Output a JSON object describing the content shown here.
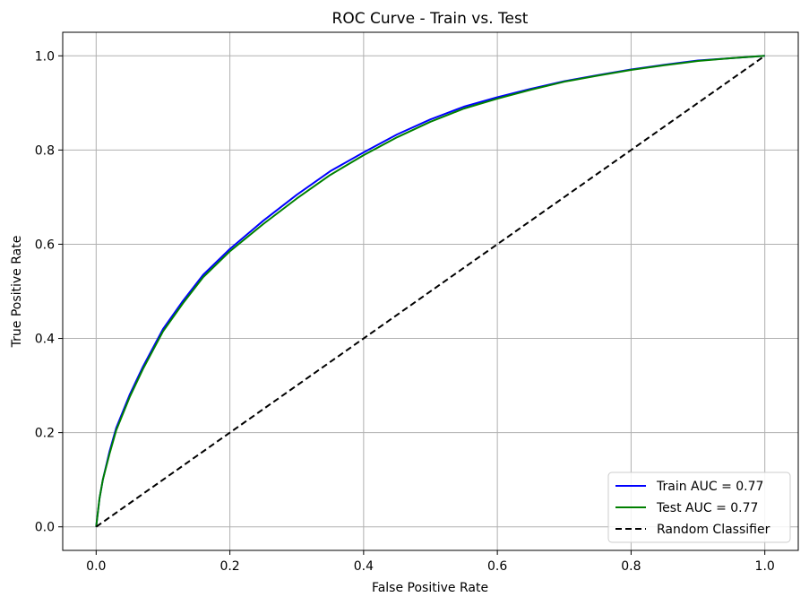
{
  "chart_data": {
    "type": "line",
    "title": "ROC Curve - Train vs. Test",
    "xlabel": "False Positive Rate",
    "ylabel": "True Positive Rate",
    "xlim": [
      -0.05,
      1.05
    ],
    "ylim": [
      -0.05,
      1.05
    ],
    "xticks": [
      0.0,
      0.2,
      0.4,
      0.6,
      0.8,
      1.0
    ],
    "yticks": [
      0.0,
      0.2,
      0.4,
      0.6,
      0.8,
      1.0
    ],
    "xtick_labels": [
      "0.0",
      "0.2",
      "0.4",
      "0.6",
      "0.8",
      "1.0"
    ],
    "ytick_labels": [
      "0.0",
      "0.2",
      "0.4",
      "0.6",
      "0.8",
      "1.0"
    ],
    "grid": true,
    "legend_position": "bottom-right",
    "series": [
      {
        "name": "Train AUC = 0.77",
        "color": "#0000ff",
        "style": "solid",
        "x": [
          0.0,
          0.005,
          0.01,
          0.02,
          0.03,
          0.05,
          0.07,
          0.1,
          0.13,
          0.16,
          0.2,
          0.25,
          0.3,
          0.35,
          0.4,
          0.45,
          0.5,
          0.55,
          0.6,
          0.65,
          0.7,
          0.75,
          0.8,
          0.85,
          0.9,
          0.95,
          1.0
        ],
        "y": [
          0.0,
          0.06,
          0.1,
          0.16,
          0.21,
          0.28,
          0.34,
          0.42,
          0.48,
          0.535,
          0.59,
          0.65,
          0.705,
          0.755,
          0.795,
          0.833,
          0.865,
          0.892,
          0.912,
          0.93,
          0.946,
          0.959,
          0.971,
          0.981,
          0.99,
          0.995,
          1.0
        ]
      },
      {
        "name": "Test AUC = 0.77",
        "color": "#008000",
        "style": "solid",
        "x": [
          0.0,
          0.005,
          0.01,
          0.02,
          0.03,
          0.05,
          0.07,
          0.1,
          0.13,
          0.16,
          0.2,
          0.25,
          0.3,
          0.35,
          0.4,
          0.45,
          0.5,
          0.55,
          0.6,
          0.65,
          0.7,
          0.75,
          0.8,
          0.85,
          0.9,
          0.95,
          1.0
        ],
        "y": [
          0.0,
          0.06,
          0.1,
          0.155,
          0.205,
          0.275,
          0.335,
          0.415,
          0.475,
          0.53,
          0.585,
          0.643,
          0.697,
          0.747,
          0.789,
          0.827,
          0.86,
          0.888,
          0.909,
          0.928,
          0.945,
          0.958,
          0.97,
          0.98,
          0.989,
          0.995,
          1.0
        ]
      },
      {
        "name": "Random Classifier",
        "color": "#000000",
        "style": "dashed",
        "x": [
          0.0,
          1.0
        ],
        "y": [
          0.0,
          1.0
        ]
      }
    ]
  }
}
